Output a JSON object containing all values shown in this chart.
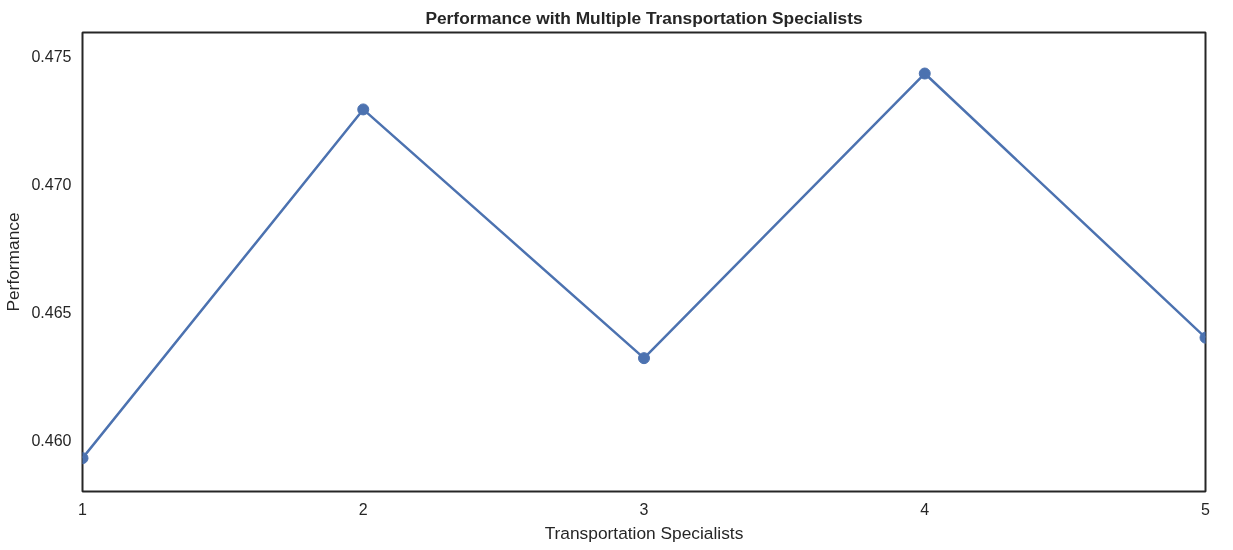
{
  "chart_data": {
    "type": "line",
    "title": "Performance with Multiple Transportation Specialists",
    "xlabel": "Transportation Specialists",
    "ylabel": "Performance",
    "x": [
      1,
      2,
      3,
      4,
      5
    ],
    "series": [
      {
        "color": "#4c72b0",
        "values": [
          0.4593,
          0.4729,
          0.4632,
          0.4743,
          0.464
        ]
      }
    ],
    "xlim": [
      1,
      5
    ],
    "xticks": [
      1,
      2,
      3,
      4,
      5
    ],
    "ylim": [
      0.458,
      0.4759
    ],
    "yticks": [
      {
        "value": 0.46,
        "label": "0.460"
      },
      {
        "value": 0.465,
        "label": "0.465"
      },
      {
        "value": 0.47,
        "label": "0.470"
      },
      {
        "value": 0.475,
        "label": "0.475"
      }
    ],
    "grid": false,
    "marker": "circle",
    "line_style": "solid"
  }
}
